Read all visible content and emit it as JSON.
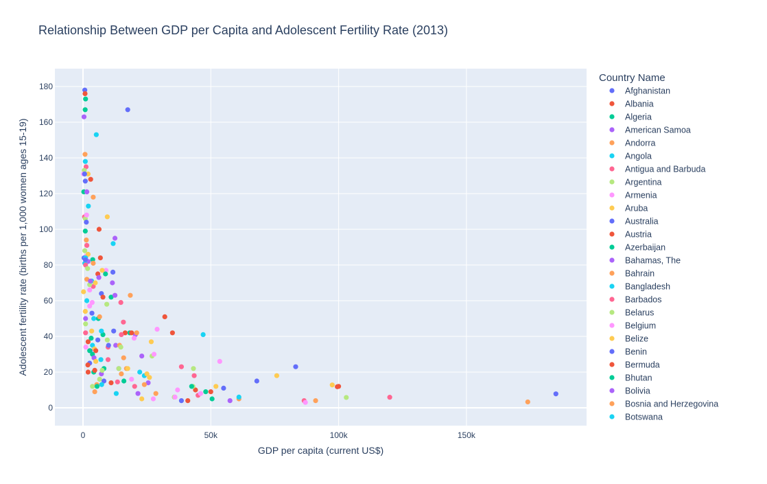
{
  "chart_data": {
    "type": "scatter",
    "title": "Relationship Between GDP per Capita and Adolescent Fertility Rate (2013)",
    "xlabel": "GDP per capita (current US$)",
    "ylabel": "Adolescent fertility rate (births per 1,000 women ages 15-19)",
    "xlim": [
      -11000,
      197000
    ],
    "ylim": [
      -10,
      190
    ],
    "x_ticks": [
      0,
      50000,
      100000,
      150000
    ],
    "x_tick_labels": [
      "0",
      "50k",
      "100k",
      "150k"
    ],
    "y_ticks": [
      0,
      20,
      40,
      60,
      80,
      100,
      120,
      140,
      160,
      180
    ],
    "y_tick_labels": [
      "0",
      "20",
      "40",
      "60",
      "80",
      "100",
      "120",
      "140",
      "160",
      "180"
    ],
    "grid": true,
    "legend_title": "Country Name",
    "legend_placement": "right",
    "palette": [
      "#636efa",
      "#EF553B",
      "#00cc96",
      "#ab63fa",
      "#FFA15A",
      "#19d3f3",
      "#FF6692",
      "#B6E880",
      "#FF97FF",
      "#FECB52"
    ],
    "plot_background": "#E5ECF6",
    "series": [
      {
        "name": "Afghanistan",
        "points": [
          [
            630,
            131
          ],
          [
            17500,
            167
          ],
          [
            185000,
            7.8
          ]
        ]
      },
      {
        "name": "Albania",
        "points": [
          [
            4600,
            21
          ],
          [
            16500,
            42
          ],
          [
            99500,
            11.8
          ]
        ]
      },
      {
        "name": "Algeria",
        "points": [
          [
            5500,
            12
          ],
          [
            850,
            167
          ]
        ]
      },
      {
        "name": "American Samoa",
        "points": [
          [
            11500,
            70
          ]
        ]
      },
      {
        "name": "Andorra",
        "points": [
          [
            91000,
            4
          ],
          [
            174000,
            3.3
          ]
        ]
      },
      {
        "name": "Angola",
        "points": [
          [
            5200,
            153
          ]
        ]
      },
      {
        "name": "Antigua and Barbuda",
        "points": [
          [
            13500,
            14.5
          ],
          [
            120000,
            5.9
          ]
        ]
      },
      {
        "name": "Argentina",
        "points": [
          [
            14000,
            22
          ],
          [
            103000,
            5.8
          ]
        ]
      },
      {
        "name": "Armenia",
        "points": [
          [
            3600,
            59
          ],
          [
            87000,
            3
          ]
        ]
      },
      {
        "name": "Aruba",
        "points": [
          [
            25000,
            19
          ],
          [
            97500,
            12.8
          ]
        ]
      },
      {
        "name": "Australia",
        "points": [
          [
            68000,
            15
          ]
        ]
      },
      {
        "name": "Austria",
        "points": [
          [
            50000,
            9
          ]
        ]
      },
      {
        "name": "Azerbaijan",
        "points": [
          [
            7800,
            41
          ]
        ]
      },
      {
        "name": "Bahamas, The",
        "points": [
          [
            23000,
            29
          ]
        ]
      },
      {
        "name": "Bahrain",
        "points": [
          [
            24000,
            13
          ]
        ]
      },
      {
        "name": "Bangladesh",
        "points": [
          [
            1000,
            84
          ]
        ]
      },
      {
        "name": "Barbados",
        "points": [
          [
            15000,
            41
          ]
        ]
      },
      {
        "name": "Belarus",
        "points": [
          [
            7500,
            21
          ]
        ]
      },
      {
        "name": "Belgium",
        "points": [
          [
            46000,
            8
          ]
        ]
      },
      {
        "name": "Belize",
        "points": [
          [
            4800,
            70
          ]
        ]
      },
      {
        "name": "Benin",
        "points": [
          [
            900,
            83
          ]
        ]
      },
      {
        "name": "Bermuda",
        "points": [
          [
            100000,
            12
          ]
        ]
      },
      {
        "name": "Bhutan",
        "points": [
          [
            2600,
            32
          ]
        ]
      },
      {
        "name": "Bolivia",
        "points": [
          [
            2900,
            71
          ]
        ]
      },
      {
        "name": "Bosnia and Herzegovina",
        "points": [
          [
            4600,
            9
          ]
        ]
      },
      {
        "name": "Botswana",
        "points": [
          [
            7200,
            43
          ]
        ]
      }
    ],
    "unlabeled_points": [
      [
        700,
        178
      ],
      [
        800,
        176
      ],
      [
        1000,
        173
      ],
      [
        400,
        163
      ],
      [
        800,
        142
      ],
      [
        900,
        138
      ],
      [
        1200,
        135
      ],
      [
        500,
        133
      ],
      [
        200,
        131
      ],
      [
        2000,
        131
      ],
      [
        900,
        127
      ],
      [
        3000,
        128
      ],
      [
        300,
        121
      ],
      [
        1500,
        121
      ],
      [
        4000,
        118
      ],
      [
        2100,
        113
      ],
      [
        600,
        107
      ],
      [
        900,
        106
      ],
      [
        1400,
        108
      ],
      [
        9500,
        107
      ],
      [
        1300,
        104
      ],
      [
        6300,
        100
      ],
      [
        900,
        99
      ],
      [
        12500,
        95
      ],
      [
        1300,
        94
      ],
      [
        11800,
        92
      ],
      [
        1500,
        91
      ],
      [
        700,
        88
      ],
      [
        1300,
        85
      ],
      [
        2000,
        86
      ],
      [
        400,
        84
      ],
      [
        6800,
        84
      ],
      [
        3800,
        83
      ],
      [
        2000,
        82
      ],
      [
        4000,
        81
      ],
      [
        700,
        81
      ],
      [
        1000,
        80
      ],
      [
        1800,
        78
      ],
      [
        9000,
        77
      ],
      [
        7500,
        77
      ],
      [
        11700,
        76
      ],
      [
        5800,
        75
      ],
      [
        8800,
        75
      ],
      [
        6200,
        73
      ],
      [
        1500,
        72
      ],
      [
        3400,
        71
      ],
      [
        4000,
        68
      ],
      [
        2600,
        69
      ],
      [
        2600,
        66
      ],
      [
        200,
        65
      ],
      [
        7200,
        64
      ],
      [
        7800,
        62
      ],
      [
        11000,
        62
      ],
      [
        12500,
        63
      ],
      [
        18500,
        63
      ],
      [
        1500,
        60
      ],
      [
        14800,
        59
      ],
      [
        9300,
        58
      ],
      [
        2600,
        57
      ],
      [
        900,
        54
      ],
      [
        3500,
        53
      ],
      [
        32000,
        51
      ],
      [
        6000,
        50
      ],
      [
        1000,
        50
      ],
      [
        6500,
        51
      ],
      [
        4200,
        50
      ],
      [
        15800,
        48
      ],
      [
        1000,
        47
      ],
      [
        29000,
        44
      ],
      [
        3400,
        43
      ],
      [
        12000,
        43
      ],
      [
        35000,
        42
      ],
      [
        18300,
        42
      ],
      [
        20500,
        41
      ],
      [
        21000,
        42
      ],
      [
        47000,
        41
      ],
      [
        1000,
        42
      ],
      [
        9500,
        38
      ],
      [
        20000,
        39
      ],
      [
        26700,
        37
      ],
      [
        5800,
        38
      ],
      [
        2000,
        37
      ],
      [
        3200,
        39
      ],
      [
        12800,
        35
      ],
      [
        14300,
        35
      ],
      [
        3700,
        35
      ],
      [
        9800,
        34
      ],
      [
        14800,
        34
      ],
      [
        1100,
        34
      ],
      [
        4500,
        33
      ],
      [
        2800,
        32
      ],
      [
        5000,
        32
      ],
      [
        3700,
        30
      ],
      [
        4300,
        28
      ],
      [
        15900,
        28
      ],
      [
        7000,
        27
      ],
      [
        9800,
        27
      ],
      [
        27000,
        29
      ],
      [
        27800,
        30
      ],
      [
        5000,
        26
      ],
      [
        2600,
        25
      ],
      [
        1900,
        24
      ],
      [
        8200,
        22
      ],
      [
        14000,
        22
      ],
      [
        17000,
        22
      ],
      [
        22200,
        20
      ],
      [
        38500,
        23
      ],
      [
        43200,
        22
      ],
      [
        53500,
        26
      ],
      [
        75800,
        18
      ],
      [
        83200,
        23
      ],
      [
        2000,
        20
      ],
      [
        4200,
        20
      ],
      [
        7200,
        19
      ],
      [
        15000,
        19
      ],
      [
        24000,
        18
      ],
      [
        43500,
        18
      ],
      [
        6500,
        16
      ],
      [
        19000,
        16
      ],
      [
        26000,
        17
      ],
      [
        8200,
        15
      ],
      [
        11000,
        14
      ],
      [
        16000,
        15
      ],
      [
        25500,
        14
      ],
      [
        5400,
        13
      ],
      [
        7300,
        13
      ],
      [
        20200,
        12
      ],
      [
        3700,
        12
      ],
      [
        37000,
        10
      ],
      [
        52000,
        12
      ],
      [
        55000,
        11
      ],
      [
        44000,
        10
      ],
      [
        48000,
        9
      ],
      [
        21500,
        8
      ],
      [
        28500,
        8
      ],
      [
        13000,
        8
      ],
      [
        45000,
        7
      ],
      [
        35700,
        6
      ],
      [
        27500,
        5
      ],
      [
        23000,
        5
      ],
      [
        38500,
        4
      ],
      [
        41000,
        4
      ],
      [
        50500,
        5
      ],
      [
        57500,
        4
      ],
      [
        61000,
        5
      ],
      [
        61000,
        6
      ],
      [
        86500,
        4
      ],
      [
        43000,
        12
      ],
      [
        36000,
        6
      ],
      [
        17500,
        22
      ],
      [
        10000,
        35
      ],
      [
        19000,
        42
      ],
      [
        42500,
        12
      ]
    ]
  }
}
